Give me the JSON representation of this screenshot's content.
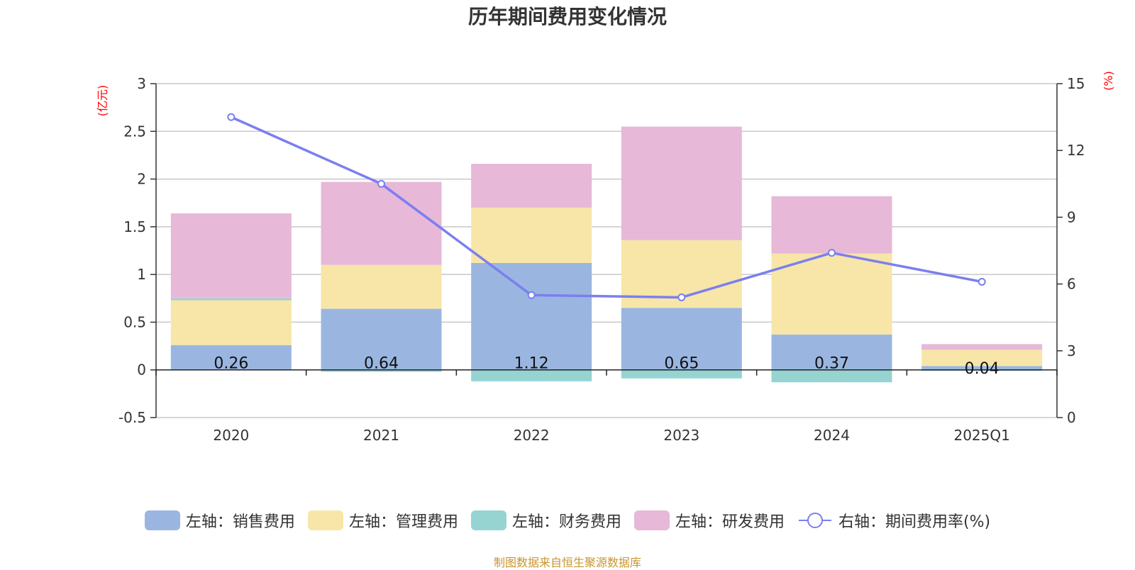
{
  "title": "历年期间费用变化情况",
  "left_unit": "(亿元)",
  "right_unit": "(%)",
  "source_note": "制图数据来自恒生聚源数据库",
  "colors": {
    "sales": "#9ab6e0",
    "admin": "#f7e6a8",
    "finance": "#96d4d2",
    "rd": "#e7b8d8",
    "rate": "#7b7fef",
    "unit": "#ff0000",
    "source": "#c8962e"
  },
  "legend": [
    {
      "key": "sales",
      "label": "左轴：销售费用"
    },
    {
      "key": "admin",
      "label": "左轴：管理费用"
    },
    {
      "key": "finance",
      "label": "左轴：财务费用"
    },
    {
      "key": "rd",
      "label": "左轴：研发费用"
    },
    {
      "key": "rate",
      "label": "右轴：期间费用率(%)"
    }
  ],
  "chart_data": {
    "type": "bar",
    "stacked": true,
    "categories": [
      "2020",
      "2021",
      "2022",
      "2023",
      "2024",
      "2025Q1"
    ],
    "series": [
      {
        "key": "sales",
        "name": "左轴：销售费用",
        "axis": "left",
        "values": [
          0.26,
          0.64,
          1.12,
          0.65,
          0.37,
          0.04
        ],
        "labels": [
          "0.26",
          "0.64",
          "1.12",
          "0.65",
          "0.37",
          "0.04"
        ]
      },
      {
        "key": "admin",
        "name": "左轴：管理费用",
        "axis": "left",
        "values": [
          0.47,
          0.46,
          0.58,
          0.71,
          0.85,
          0.17
        ]
      },
      {
        "key": "finance",
        "name": "左轴：财务费用",
        "axis": "left",
        "values": [
          0.02,
          -0.02,
          -0.12,
          -0.09,
          -0.13,
          -0.01
        ]
      },
      {
        "key": "rd",
        "name": "左轴：研发费用",
        "axis": "left",
        "values": [
          0.89,
          0.87,
          0.46,
          1.19,
          0.6,
          0.06
        ]
      },
      {
        "key": "rate",
        "name": "右轴：期间费用率(%)",
        "axis": "right",
        "type": "line",
        "values": [
          13.5,
          10.5,
          5.5,
          5.4,
          7.4,
          6.1
        ]
      }
    ],
    "left_axis": {
      "ylim": [
        -0.5,
        3
      ],
      "ticks": [
        "-0.5",
        "0",
        "0.5",
        "1",
        "1.5",
        "2",
        "2.5",
        "3"
      ],
      "label": "(亿元)"
    },
    "right_axis": {
      "ylim": [
        0,
        15
      ],
      "ticks": [
        "0",
        "3",
        "6",
        "9",
        "12",
        "15"
      ],
      "label": "(%)"
    },
    "grid": true,
    "legend_position": "bottom"
  }
}
